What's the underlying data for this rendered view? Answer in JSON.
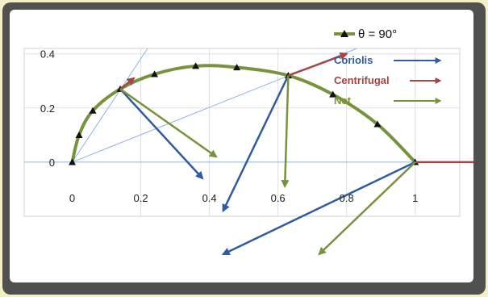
{
  "chart_data": {
    "type": "scatter",
    "title": "",
    "xlabel": "",
    "ylabel": "",
    "xlim": [
      -0.14,
      1.13
    ],
    "ylim": [
      -0.2,
      0.42
    ],
    "x_ticks": [
      "0",
      "0.2",
      "0.4",
      "0.6",
      "0.8",
      "1"
    ],
    "x_tick_values": [
      0,
      0.2,
      0.4,
      0.6,
      0.8,
      1
    ],
    "y_ticks": [
      "0",
      "0.2",
      "0.4"
    ],
    "y_tick_values": [
      0,
      0.2,
      0.4
    ],
    "series": [
      {
        "name": "θ = 90°",
        "color": "#77933c",
        "marker": "triangle",
        "x": [
          0,
          0.02,
          0.06,
          0.14,
          0.24,
          0.36,
          0.48,
          0.63,
          0.76,
          0.89,
          1.0
        ],
        "y": [
          0,
          0.1,
          0.19,
          0.27,
          0.325,
          0.355,
          0.35,
          0.32,
          0.25,
          0.14,
          0
        ]
      }
    ],
    "legend": {
      "position": "top-right",
      "entries": [
        {
          "label": "Coriolis",
          "color": "#2e5c9e"
        },
        {
          "label": "Centrifugal",
          "color": "#a94442"
        },
        {
          "label": "Net",
          "color": "#77933c"
        }
      ]
    },
    "guide_lines": [
      {
        "x1": 0,
        "y1": 0,
        "x2": 0.22,
        "y2": 0.42,
        "color": "#8eb4e3"
      },
      {
        "x1": 0,
        "y1": 0,
        "x2": 0.83,
        "y2": 0.42,
        "color": "#8eb4e3"
      },
      {
        "x1": -0.14,
        "y1": 0,
        "x2": 1.13,
        "y2": 0,
        "color": "#8eb4e3"
      }
    ],
    "vectors": [
      {
        "kind": "Centrifugal",
        "x1": 0.14,
        "y1": 0.27,
        "x2": 0.18,
        "y2": 0.31
      },
      {
        "kind": "Coriolis",
        "x1": 0.14,
        "y1": 0.27,
        "x2": 0.38,
        "y2": -0.06
      },
      {
        "kind": "Net",
        "x1": 0.14,
        "y1": 0.27,
        "x2": 0.42,
        "y2": 0.02
      },
      {
        "kind": "Centrifugal",
        "x1": 0.63,
        "y1": 0.32,
        "x2": 0.8,
        "y2": 0.4
      },
      {
        "kind": "Coriolis",
        "x1": 0.63,
        "y1": 0.32,
        "x2": 0.44,
        "y2": -0.18
      },
      {
        "kind": "Net",
        "x1": 0.63,
        "y1": 0.32,
        "x2": 0.62,
        "y2": -0.09
      },
      {
        "kind": "Centrifugal",
        "x1": 1.0,
        "y1": 0,
        "x2": 1.28,
        "y2": 0
      },
      {
        "kind": "Coriolis",
        "x1": 1.0,
        "y1": 0,
        "x2": 0.44,
        "y2": -0.34
      },
      {
        "kind": "Net",
        "x1": 1.0,
        "y1": 0,
        "x2": 0.72,
        "y2": -0.34
      }
    ]
  }
}
